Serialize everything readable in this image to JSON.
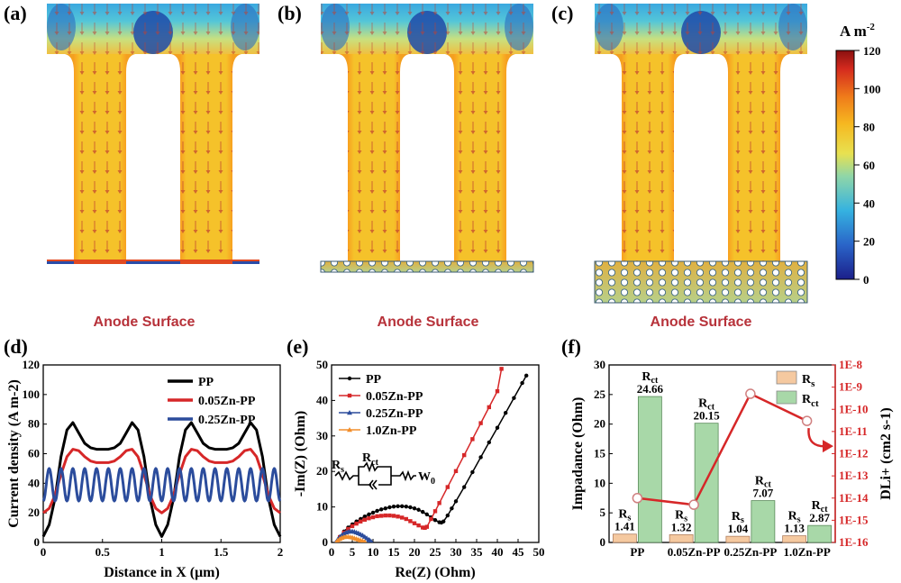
{
  "panels": {
    "a": "(a)",
    "b": "(b)",
    "c": "(c)",
    "d": "(d)",
    "e": "(e)",
    "f": "(f)"
  },
  "sims": {
    "caption": "Anode Surface",
    "colorbar": {
      "unit_base": "A m",
      "unit_exp": "-2",
      "ticks": [
        "0",
        "20",
        "40",
        "60",
        "80",
        "100",
        "120"
      ]
    }
  },
  "chart_data": [
    {
      "id": "d",
      "type": "line",
      "xlabel": "Distance in X (μm)",
      "ylabel": "Current density (A m-2)",
      "xlim": [
        0,
        2
      ],
      "ylim": [
        0,
        120
      ],
      "xticks": [
        "0",
        "0.5",
        "1",
        "1.5",
        "2"
      ],
      "yticks": [
        "0",
        "20",
        "40",
        "60",
        "80",
        "100",
        "120"
      ],
      "legend_position": "top-right",
      "series": [
        {
          "name": "PP",
          "color": "#000000",
          "x": [
            0,
            0.05,
            0.1,
            0.15,
            0.2,
            0.25,
            0.3,
            0.35,
            0.4,
            0.45,
            0.5,
            0.55,
            0.6,
            0.65,
            0.7,
            0.75,
            0.8,
            0.85,
            0.9,
            0.95,
            1.0,
            1.05,
            1.1,
            1.15,
            1.2,
            1.25,
            1.3,
            1.35,
            1.4,
            1.45,
            1.5,
            1.55,
            1.6,
            1.65,
            1.7,
            1.75,
            1.8,
            1.85,
            1.9,
            1.95,
            2.0
          ],
          "y": [
            4,
            12,
            30,
            58,
            76,
            81,
            74,
            67,
            64,
            63,
            63,
            63,
            64,
            67,
            74,
            81,
            76,
            58,
            30,
            12,
            4,
            12,
            30,
            58,
            76,
            81,
            74,
            67,
            64,
            63,
            63,
            63,
            64,
            67,
            74,
            81,
            76,
            58,
            30,
            12,
            4
          ]
        },
        {
          "name": "0.05Zn-PP",
          "color": "#d62728",
          "x": [
            0,
            0.05,
            0.1,
            0.15,
            0.2,
            0.25,
            0.3,
            0.35,
            0.4,
            0.45,
            0.5,
            0.55,
            0.6,
            0.65,
            0.7,
            0.75,
            0.8,
            0.85,
            0.9,
            0.95,
            1.0,
            1.05,
            1.1,
            1.15,
            1.2,
            1.25,
            1.3,
            1.35,
            1.4,
            1.45,
            1.5,
            1.55,
            1.6,
            1.65,
            1.7,
            1.75,
            1.8,
            1.85,
            1.9,
            1.95,
            2.0
          ],
          "y": [
            20,
            23,
            32,
            46,
            58,
            63,
            62,
            58,
            55,
            54,
            54,
            54,
            55,
            58,
            62,
            63,
            58,
            46,
            32,
            23,
            20,
            23,
            32,
            46,
            58,
            63,
            62,
            58,
            55,
            54,
            54,
            54,
            55,
            58,
            62,
            63,
            58,
            46,
            32,
            23,
            20
          ]
        },
        {
          "name": "0.25Zn-PP",
          "color": "#2b4c9c",
          "oscillation": {
            "mean": 39,
            "amplitude": 11,
            "cycles": 20,
            "start_phase": "min"
          }
        }
      ]
    },
    {
      "id": "e",
      "type": "line",
      "xlabel": "Re(Z) (Ohm)",
      "ylabel": "-Im(Z) (Ohm)",
      "xlim": [
        0,
        50
      ],
      "ylim": [
        0,
        50
      ],
      "xticks": [
        "0",
        "5",
        "10",
        "15",
        "20",
        "25",
        "30",
        "35",
        "40",
        "45",
        "50"
      ],
      "yticks": [
        "0",
        "10",
        "20",
        "30",
        "40",
        "50"
      ],
      "legend_position": "top-left",
      "series": [
        {
          "name": "PP",
          "color": "#000000",
          "marker": "circle",
          "x": [
            1.4,
            2,
            3,
            4,
            5,
            6,
            7,
            8,
            9,
            10,
            11,
            12,
            13,
            14,
            15,
            16,
            17,
            18,
            19,
            20,
            21,
            22,
            23,
            24,
            25,
            26,
            26.5,
            27,
            28,
            29,
            30,
            32,
            34,
            36,
            38,
            40,
            42,
            44,
            46,
            47
          ],
          "y": [
            0,
            1.6,
            3.1,
            4.2,
            5.1,
            5.9,
            6.6,
            7.3,
            7.9,
            8.4,
            8.9,
            9.3,
            9.6,
            9.9,
            10.1,
            10.2,
            10.2,
            10.1,
            9.9,
            9.6,
            9.2,
            8.6,
            7.9,
            7.1,
            6.3,
            5.7,
            5.6,
            5.9,
            7.6,
            9.6,
            11.6,
            15.6,
            19.8,
            24.0,
            28.2,
            32.3,
            36.5,
            40.7,
            44.9,
            47.0
          ]
        },
        {
          "name": "0.05Zn-PP",
          "color": "#d62728",
          "marker": "square",
          "x": [
            1.3,
            2,
            3,
            4,
            5,
            6,
            7,
            8,
            9,
            10,
            11,
            12,
            13,
            14,
            15,
            16,
            17,
            18,
            19,
            20,
            21,
            22,
            22.5,
            23,
            24,
            25,
            26,
            28,
            30,
            32,
            34,
            36,
            38,
            40,
            41
          ],
          "y": [
            0,
            1.5,
            2.8,
            3.8,
            4.6,
            5.3,
            5.9,
            6.4,
            6.8,
            7.1,
            7.4,
            7.5,
            7.6,
            7.6,
            7.5,
            7.3,
            7.0,
            6.6,
            6.0,
            5.4,
            4.8,
            4.2,
            4.1,
            4.4,
            6.6,
            8.8,
            11.1,
            15.6,
            20.1,
            24.6,
            29.1,
            33.6,
            38.1,
            42.6,
            48.9
          ]
        },
        {
          "name": "0.25Zn-PP",
          "color": "#2b4c9c",
          "marker": "triangle",
          "x": [
            1.0,
            1.5,
            2,
            2.5,
            3,
            3.5,
            4,
            4.5,
            5,
            5.5,
            6,
            6.5,
            7,
            7.5,
            8,
            8.5,
            9,
            9.3,
            9.6
          ],
          "y": [
            0,
            0.9,
            1.6,
            2.1,
            2.5,
            2.8,
            3.0,
            3.1,
            3.1,
            3.0,
            2.8,
            2.6,
            2.3,
            2.0,
            1.6,
            1.2,
            0.8,
            0.5,
            0.2
          ]
        },
        {
          "name": "1.0Zn-PP",
          "color": "#f28e2b",
          "marker": "triangle",
          "x": [
            1.1,
            1.5,
            2,
            2.5,
            3,
            3.5,
            4,
            4.5,
            5,
            5.5,
            6,
            6.5,
            7,
            7.5,
            8
          ],
          "y": [
            0,
            0.6,
            1.0,
            1.3,
            1.5,
            1.6,
            1.6,
            1.5,
            1.4,
            1.2,
            1.0,
            0.8,
            0.6,
            0.4,
            0.2
          ]
        }
      ],
      "circuit": {
        "r_s": "Rs",
        "r_ct": "Rct",
        "w": "W0"
      }
    },
    {
      "id": "f",
      "type": "bar",
      "categories": [
        "PP",
        "0.05Zn-PP",
        "0.25Zn-PP",
        "1.0Zn-PP"
      ],
      "ylabel": "Impadance (Ohm)",
      "y2label": "DLi+ (cm2 s-1)",
      "ylim": [
        0,
        30
      ],
      "yticks": [
        "0",
        "5",
        "10",
        "15",
        "20",
        "25",
        "30"
      ],
      "y2ticks": [
        "1E-16",
        "1E-15",
        "1E-14",
        "1E-13",
        "1E-12",
        "1E-11",
        "1E-10",
        "1E-9",
        "1E-8"
      ],
      "y2scale": "log",
      "y2lim": [
        1e-16,
        1e-08
      ],
      "legend_position": "top-right",
      "series": [
        {
          "name": "Rs",
          "color": "#f5c9a0",
          "values": [
            1.41,
            1.32,
            1.04,
            1.13
          ],
          "labels": [
            "1.41",
            "1.32",
            "1.04",
            "1.13"
          ]
        },
        {
          "name": "Rct",
          "color": "#a8d8a8",
          "values": [
            24.66,
            20.15,
            7.07,
            2.87
          ],
          "labels": [
            "24.66",
            "20.15",
            "7.07",
            "2.87"
          ]
        },
        {
          "name": "DLi+",
          "color": "#d62728",
          "axis": "right",
          "values": [
            1e-14,
            5e-15,
            5e-10,
            3e-11
          ]
        }
      ]
    }
  ]
}
